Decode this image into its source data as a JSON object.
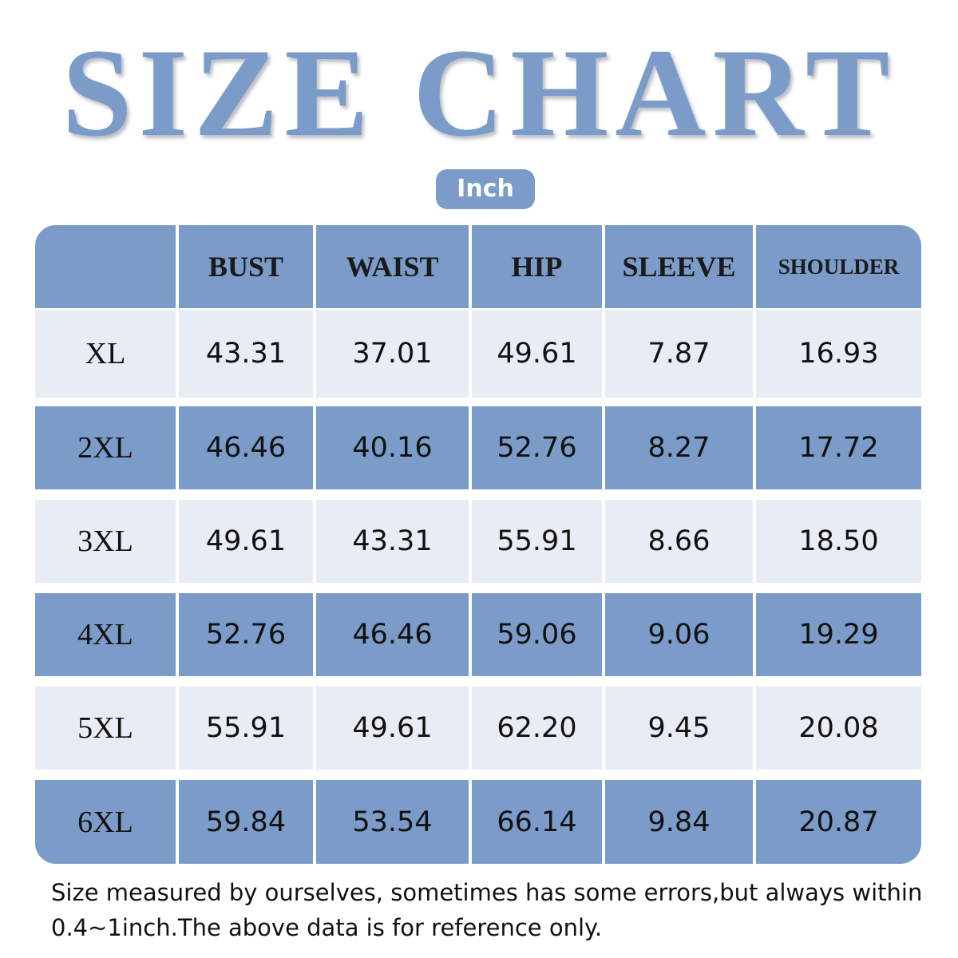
{
  "title": "SIZE CHART",
  "unit": "Inch",
  "colors": {
    "accent": "#7b9bc8",
    "row_light": "#e7ecf5",
    "text": "#111111"
  },
  "chart_data": {
    "type": "table",
    "title": "SIZE CHART",
    "unit": "Inch",
    "columns": [
      "",
      "BUST",
      "WAIST",
      "HIP",
      "SLEEVE",
      "SHOULDER"
    ],
    "rows": [
      {
        "size": "XL",
        "values": [
          "43.31",
          "37.01",
          "49.61",
          "7.87",
          "16.93"
        ]
      },
      {
        "size": "2XL",
        "values": [
          "46.46",
          "40.16",
          "52.76",
          "8.27",
          "17.72"
        ]
      },
      {
        "size": "3XL",
        "values": [
          "49.61",
          "43.31",
          "55.91",
          "8.66",
          "18.50"
        ]
      },
      {
        "size": "4XL",
        "values": [
          "52.76",
          "46.46",
          "59.06",
          "9.06",
          "19.29"
        ]
      },
      {
        "size": "5XL",
        "values": [
          "55.91",
          "49.61",
          "62.20",
          "9.45",
          "20.08"
        ]
      },
      {
        "size": "6XL",
        "values": [
          "59.84",
          "53.54",
          "66.14",
          "9.84",
          "20.87"
        ]
      }
    ]
  },
  "footnote": "Size measured by ourselves, sometimes has some errors,but always within 0.4~1inch.The above data is for reference only."
}
